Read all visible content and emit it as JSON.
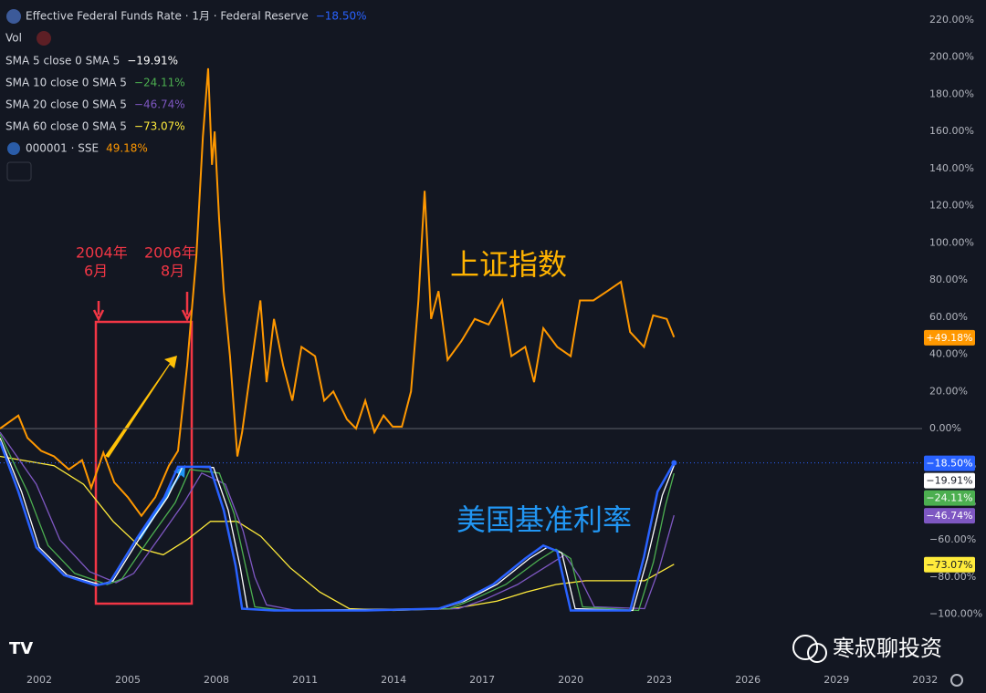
{
  "chart_data": {
    "type": "line",
    "indicator": "Vol",
    "xlim": [
      2000.67,
      2031.9
    ],
    "ylim": [
      -100,
      220
    ],
    "xticks": [
      2002,
      2005,
      2008,
      2011,
      2014,
      2017,
      2020,
      2023,
      2026,
      2029,
      2032
    ],
    "yticks": [
      {
        "value": 220,
        "label": "220.00%"
      },
      {
        "value": 200,
        "label": "200.00%"
      },
      {
        "value": 180,
        "label": "180.00%"
      },
      {
        "value": 160,
        "label": "160.00%"
      },
      {
        "value": 140,
        "label": "140.00%"
      },
      {
        "value": 120,
        "label": "120.00%"
      },
      {
        "value": 100,
        "label": "100.00%"
      },
      {
        "value": 80,
        "label": "80.00%"
      },
      {
        "value": 60,
        "label": "60.00%"
      },
      {
        "value": 40,
        "label": "40.00%"
      },
      {
        "value": 20,
        "label": "20.00%"
      },
      {
        "value": 0,
        "label": "0.00%"
      },
      {
        "value": -20,
        "label": "−20.00%"
      },
      {
        "value": -40,
        "label": "−40.00%"
      },
      {
        "value": -60,
        "label": "−60.00%"
      },
      {
        "value": -80,
        "label": "−80.00%"
      },
      {
        "value": -100,
        "label": "−100.00%"
      }
    ],
    "series": [
      {
        "name": "Effective Federal Funds Rate · 1月 · Federal Reserve",
        "color": "#2962ff",
        "legend_value": "−18.50%",
        "badge": "−18.50%",
        "x": [
          2000.67,
          2001.29,
          2001.9,
          2002.84,
          2003.92,
          2004.38,
          2005.31,
          2006.24,
          2006.7,
          2007.78,
          2008.25,
          2008.65,
          2008.87,
          2009.95,
          2013.04,
          2015.52,
          2016.29,
          2017.37,
          2018.46,
          2019.07,
          2019.54,
          2020.0,
          2022.01,
          2022.48,
          2022.94,
          2023.5
        ],
        "values": [
          -7,
          -34,
          -64,
          -79,
          -84.5,
          -83,
          -59,
          -37,
          -20.6,
          -20.6,
          -44,
          -74,
          -97,
          -98,
          -98,
          -97,
          -93,
          -84,
          -70,
          -63,
          -66,
          -98,
          -98,
          -69,
          -34,
          -18.5
        ]
      },
      {
        "name": "SMA 5 close 0 SMA 5",
        "color": "#ffffff",
        "legend_value": "−19.91%",
        "badge": "−19.91%",
        "x": [
          2000.67,
          2001.4,
          2002.0,
          2002.95,
          2004.05,
          2004.5,
          2005.4,
          2006.35,
          2006.85,
          2007.9,
          2008.4,
          2008.8,
          2009.05,
          2010.0,
          2015.6,
          2016.4,
          2017.5,
          2018.6,
          2019.2,
          2019.7,
          2020.15,
          2022.1,
          2022.6,
          2023.1,
          2023.5
        ],
        "values": [
          -5,
          -34,
          -64,
          -79,
          -84,
          -82,
          -59,
          -37,
          -20.6,
          -21,
          -44,
          -74,
          -97,
          -98,
          -97,
          -93,
          -84,
          -70,
          -64,
          -67,
          -97,
          -98,
          -70,
          -36,
          -19.91
        ]
      },
      {
        "name": "SMA 10 close 0 SMA 5",
        "color": "#4caf50",
        "legend_value": "−24.11%",
        "badge": "−24.11%",
        "x": [
          2000.67,
          2001.6,
          2002.3,
          2003.2,
          2004.3,
          2004.8,
          2005.7,
          2006.6,
          2007.1,
          2008.1,
          2008.6,
          2009.0,
          2009.3,
          2010.3,
          2015.9,
          2016.7,
          2017.8,
          2018.9,
          2019.5,
          2020.0,
          2020.4,
          2022.3,
          2022.8,
          2023.2,
          2023.5
        ],
        "values": [
          -3,
          -34,
          -63,
          -78,
          -84,
          -81,
          -60,
          -40,
          -22,
          -24,
          -46,
          -75,
          -96,
          -98,
          -97,
          -92,
          -84,
          -71,
          -65,
          -70,
          -96,
          -98,
          -72,
          -42,
          -24.11
        ]
      },
      {
        "name": "SMA 20 close 0 SMA 5",
        "color": "#7e57c2",
        "legend_value": "−46.74%",
        "badge": "−46.74%",
        "x": [
          2000.67,
          2001.9,
          2002.7,
          2003.7,
          2004.6,
          2005.2,
          2006.1,
          2006.9,
          2007.5,
          2008.3,
          2008.9,
          2009.3,
          2009.7,
          2010.7,
          2016.2,
          2017.1,
          2018.2,
          2019.2,
          2019.8,
          2020.3,
          2020.8,
          2022.5,
          2023.0,
          2023.5
        ],
        "values": [
          -2,
          -30,
          -60,
          -77,
          -83,
          -78,
          -58,
          -40,
          -24,
          -30,
          -55,
          -80,
          -95,
          -98,
          -97,
          -92,
          -84,
          -74,
          -68,
          -80,
          -96,
          -97,
          -75,
          -46.74
        ]
      },
      {
        "name": "SMA 60 close 0 SMA 5",
        "color": "#ffeb3b",
        "legend_value": "−73.07%",
        "badge": "−73.07%",
        "x": [
          2000.67,
          2002.5,
          2003.5,
          2004.5,
          2005.5,
          2006.2,
          2007.0,
          2007.8,
          2008.7,
          2009.5,
          2010.5,
          2011.5,
          2012.5,
          2014.0,
          2016.0,
          2017.5,
          2018.5,
          2019.5,
          2020.5,
          2021.5,
          2022.5,
          2023.5
        ],
        "values": [
          -15,
          -20,
          -30,
          -50,
          -65,
          -68,
          -60,
          -50,
          -50,
          -58,
          -75,
          -88,
          -97,
          -98,
          -97,
          -93,
          -88,
          -84,
          -82,
          -82,
          -82,
          -73.07
        ]
      },
      {
        "name": "000001 · SSE",
        "color": "#ff9800",
        "legend_value": "49.18%",
        "badge": "+49.18%",
        "x": [
          2000.67,
          2001.29,
          2001.6,
          2002.06,
          2002.5,
          2003.0,
          2003.45,
          2003.76,
          2004.17,
          2004.54,
          2005.0,
          2005.46,
          2005.93,
          2006.39,
          2006.7,
          2007.01,
          2007.32,
          2007.54,
          2007.72,
          2007.85,
          2007.94,
          2008.09,
          2008.25,
          2008.46,
          2008.71,
          2008.87,
          2009.18,
          2009.49,
          2009.7,
          2009.95,
          2010.26,
          2010.57,
          2010.88,
          2011.34,
          2011.65,
          2011.96,
          2012.42,
          2012.73,
          2013.04,
          2013.35,
          2013.66,
          2013.97,
          2014.28,
          2014.59,
          2014.84,
          2015.05,
          2015.27,
          2015.52,
          2015.83,
          2016.29,
          2016.75,
          2017.22,
          2017.68,
          2017.99,
          2018.46,
          2018.76,
          2019.07,
          2019.54,
          2020.0,
          2020.31,
          2020.77,
          2021.24,
          2021.7,
          2022.01,
          2022.48,
          2022.79,
          2023.25,
          2023.5
        ],
        "values": [
          0,
          7,
          -5,
          -12,
          -15,
          -22,
          -17,
          -32,
          -13,
          -29,
          -37,
          -47,
          -37,
          -20,
          -12,
          34,
          93,
          157,
          194,
          142,
          160,
          113,
          74,
          39,
          -15,
          -2,
          34,
          69,
          25,
          59,
          34,
          15,
          44,
          39,
          15,
          20,
          5,
          0,
          15,
          -2,
          7,
          1,
          1,
          20,
          69,
          128,
          59,
          74,
          37,
          47,
          59,
          56,
          69,
          39,
          44,
          25,
          54,
          44,
          39,
          69,
          69,
          74,
          79,
          52,
          44,
          61,
          59,
          49.18
        ]
      }
    ],
    "annotations": [
      "2004年",
      "6月",
      "2006年",
      "8月",
      "上证指数",
      "美国基准利率"
    ],
    "watermark": "寒叔聊投资"
  }
}
